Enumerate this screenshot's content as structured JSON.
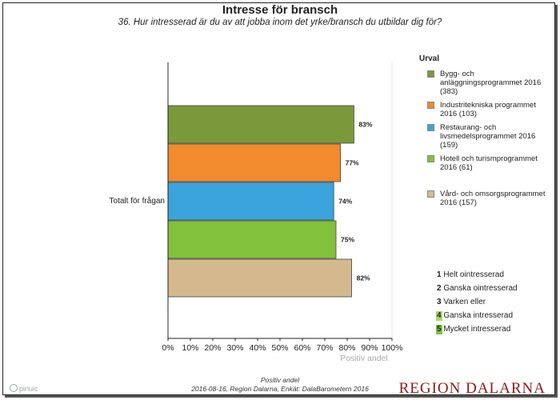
{
  "chart_data": {
    "type": "bar",
    "orientation": "horizontal",
    "title": "Intresse för bransch",
    "subtitle": "36. Hur intresserad är du av att jobba inom det yrke/bransch du utbildar dig för?",
    "categories": [
      "Totalt för frågan"
    ],
    "xlabel": "Positiv andel",
    "ylabel": "",
    "xlim": [
      0,
      100
    ],
    "xticks": [
      "0%",
      "10%",
      "20%",
      "30%",
      "40%",
      "50%",
      "60%",
      "70%",
      "80%",
      "90%",
      "100%"
    ],
    "grid": false,
    "legend_title": "Urval",
    "legend_position": "right",
    "series": [
      {
        "name": "Bygg- och anläggningsprogrammet 2016 (383)",
        "values": [
          83
        ],
        "label": "83%",
        "color": "#7a9a3a"
      },
      {
        "name": "Industritekniska programmet 2016 (103)",
        "values": [
          77
        ],
        "label": "77%",
        "color": "#f28a2e"
      },
      {
        "name": "Restaurang- och livsmedelsprogrammet 2016 (159)",
        "values": [
          74
        ],
        "label": "74%",
        "color": "#3ba4dc"
      },
      {
        "name": "Hotell och turismprogrammet 2016 (61)",
        "values": [
          75
        ],
        "label": "75%",
        "color": "#82c13b"
      },
      {
        "name": "Vård- och omsorgsprogrammet 2016 (157)",
        "values": [
          82
        ],
        "label": "82%",
        "color": "#d4b98e"
      }
    ]
  },
  "scale": [
    {
      "num": "1",
      "text": "Helt ointresserad",
      "highlight": false
    },
    {
      "num": "2",
      "text": "Ganska ointresserad",
      "highlight": false
    },
    {
      "num": "3",
      "text": "Varken eller",
      "highlight": false
    },
    {
      "num": "4",
      "text": "Ganska intresserad",
      "highlight": true
    },
    {
      "num": "5",
      "text": "Mycket intresserad",
      "highlight": true
    }
  ],
  "footer": {
    "line1": "Positiv andel",
    "line2": "2016-08-16, Region Dalarna, Enkät: DalaBarometern 2016",
    "brand_left": "pinuic",
    "brand_right": "REGION DALARNA"
  }
}
